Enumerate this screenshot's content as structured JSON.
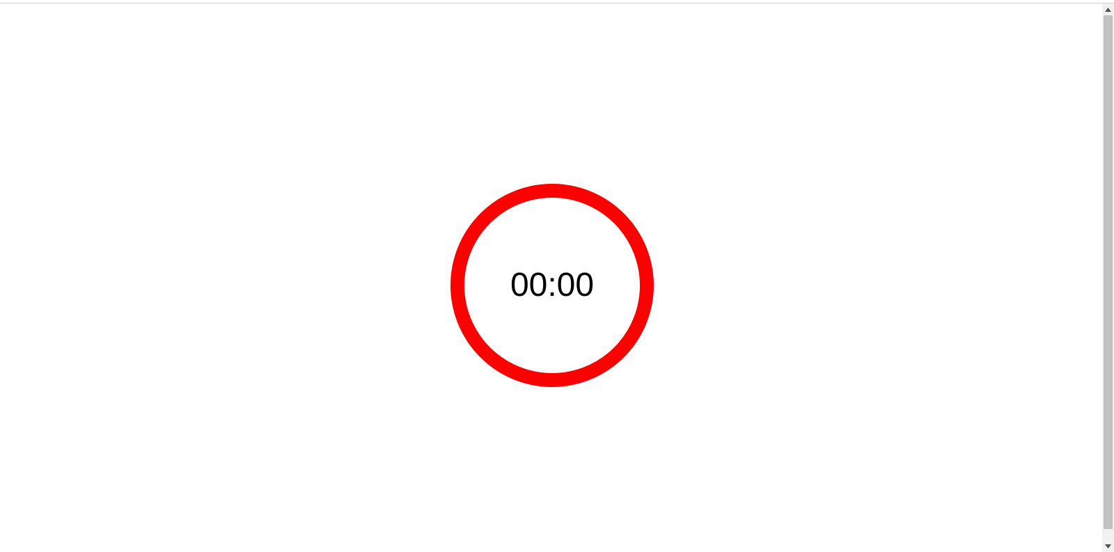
{
  "timer": {
    "display": "00:00",
    "ring_color": "#ff0000",
    "text_color": "#000000"
  },
  "scrollbar": {
    "up_icon": "scroll-up-arrow-icon",
    "down_icon": "scroll-down-arrow-icon",
    "thumb_color": "#c1c1c1",
    "track_color": "#f1f1f1"
  }
}
